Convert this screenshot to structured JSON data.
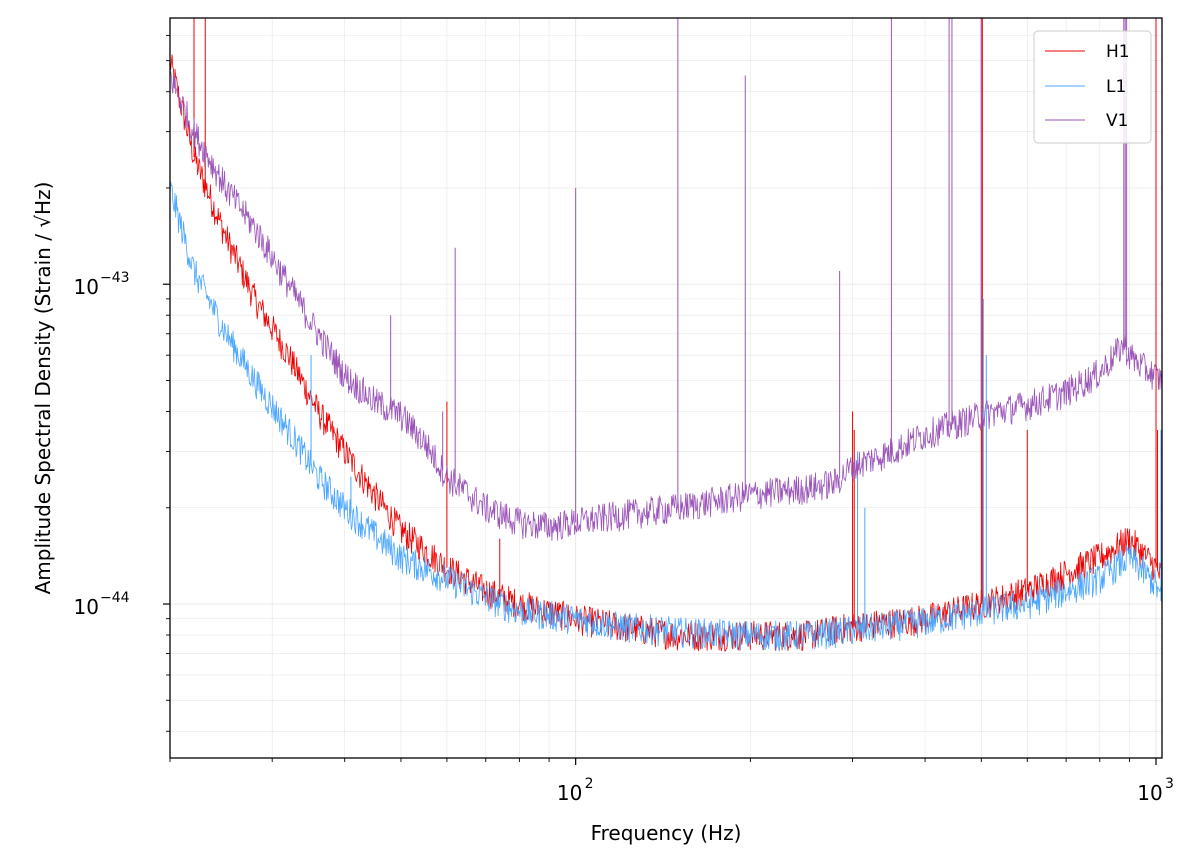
{
  "chart_data": {
    "type": "line",
    "title": "",
    "xlabel": "Frequency (Hz)",
    "ylabel": "Amplitude Spectral Density (Strain / √Hz)",
    "xscale": "log",
    "yscale": "log",
    "xlim": [
      20,
      1024
    ],
    "ylim": [
      3.3e-45,
      6.8e-43
    ],
    "grid": true,
    "legend_position": "top-right",
    "x_tick_labels": [
      {
        "x": 100,
        "base": "10",
        "exp": "2"
      },
      {
        "x": 1000,
        "base": "10",
        "exp": "3"
      }
    ],
    "y_tick_labels": [
      {
        "y": 1e-44,
        "base": "10",
        "exp": "−44"
      },
      {
        "y": 1e-43,
        "base": "10",
        "exp": "−43"
      }
    ],
    "series": [
      {
        "name": "H1",
        "color": "#ee0000",
        "x": [
          20,
          22,
          25,
          28,
          32,
          36,
          40,
          45,
          50,
          60,
          70,
          80,
          100,
          120,
          150,
          200,
          250,
          300,
          400,
          500,
          600,
          700,
          800,
          900,
          1000,
          1024
        ],
        "y": [
          5e-43,
          2.5e-43,
          1.4e-43,
          9e-44,
          6e-44,
          4e-44,
          3e-44,
          2.2e-44,
          1.7e-44,
          1.3e-44,
          1.1e-44,
          1e-44,
          9e-45,
          8.5e-45,
          8e-45,
          8e-45,
          8e-45,
          8.5e-45,
          9e-45,
          1e-44,
          1.1e-44,
          1.25e-44,
          1.4e-44,
          1.6e-44,
          1.3e-44,
          1.2e-44
        ],
        "lines": [
          [
            22,
            6.8e-43
          ],
          [
            23,
            6.8e-43
          ],
          [
            60,
            4.3e-44
          ],
          [
            74,
            1.6e-44
          ],
          [
            300,
            4e-44
          ],
          [
            302,
            3.5e-44
          ],
          [
            500,
            6.8e-43
          ],
          [
            502,
            6.8e-43
          ],
          [
            600,
            3.5e-44
          ],
          [
            1000,
            6.8e-43
          ],
          [
            1006,
            3.5e-44
          ]
        ]
      },
      {
        "name": "L1",
        "color": "#4ba6ff",
        "x": [
          20,
          22,
          25,
          28,
          32,
          36,
          40,
          45,
          50,
          60,
          70,
          80,
          100,
          120,
          150,
          200,
          250,
          300,
          400,
          500,
          600,
          700,
          800,
          900,
          1000,
          1024
        ],
        "y": [
          2e-43,
          1.1e-43,
          7e-44,
          5e-44,
          3.5e-44,
          2.5e-44,
          2e-44,
          1.65e-44,
          1.4e-44,
          1.2e-44,
          1.05e-44,
          9.5e-45,
          9e-45,
          8.5e-45,
          8.2e-45,
          8e-45,
          8e-45,
          8.3e-45,
          8.8e-45,
          9.5e-45,
          1e-44,
          1.1e-44,
          1.2e-44,
          1.4e-44,
          1.15e-44,
          1e-44
        ],
        "lines": [
          [
            35,
            6e-44
          ],
          [
            41,
            2.5e-44
          ],
          [
            306,
            3e-44
          ],
          [
            315,
            2e-44
          ],
          [
            504,
            9e-44
          ],
          [
            510,
            6e-44
          ],
          [
            1020,
            3.5e-44
          ]
        ]
      },
      {
        "name": "V1",
        "color": "#9b55b9",
        "x": [
          20,
          22,
          25,
          28,
          32,
          36,
          40,
          45,
          50,
          55,
          60,
          70,
          80,
          90,
          100,
          120,
          150,
          200,
          250,
          280,
          300,
          350,
          400,
          480,
          500,
          600,
          700,
          800,
          880,
          900,
          950,
          1024
        ],
        "y": [
          4.5e-43,
          3e-43,
          2e-43,
          1.5e-43,
          1e-43,
          7e-44,
          5.2e-44,
          4.3e-44,
          3.9e-44,
          3.2e-44,
          2.5e-44,
          2e-44,
          1.8e-44,
          1.75e-44,
          1.8e-44,
          1.9e-44,
          2e-44,
          2.2e-44,
          2.3e-44,
          2.4e-44,
          2.7e-44,
          3e-44,
          3.4e-44,
          3.8e-44,
          3.9e-44,
          4.2e-44,
          4.6e-44,
          5.3e-44,
          6.5e-44,
          6e-44,
          5.5e-44,
          5e-44
        ],
        "lines": [
          [
            48,
            8e-44
          ],
          [
            59,
            4e-44
          ],
          [
            62,
            1.3e-43
          ],
          [
            100,
            2e-43
          ],
          [
            150,
            6.8e-43
          ],
          [
            196,
            4.5e-43
          ],
          [
            285,
            1.1e-43
          ],
          [
            350,
            6.8e-43
          ],
          [
            440,
            6.8e-43
          ],
          [
            445,
            6.8e-43
          ],
          [
            500,
            6.8e-43
          ],
          [
            880,
            6.8e-43
          ],
          [
            885,
            6.8e-43
          ],
          [
            890,
            6.8e-43
          ]
        ]
      }
    ]
  }
}
